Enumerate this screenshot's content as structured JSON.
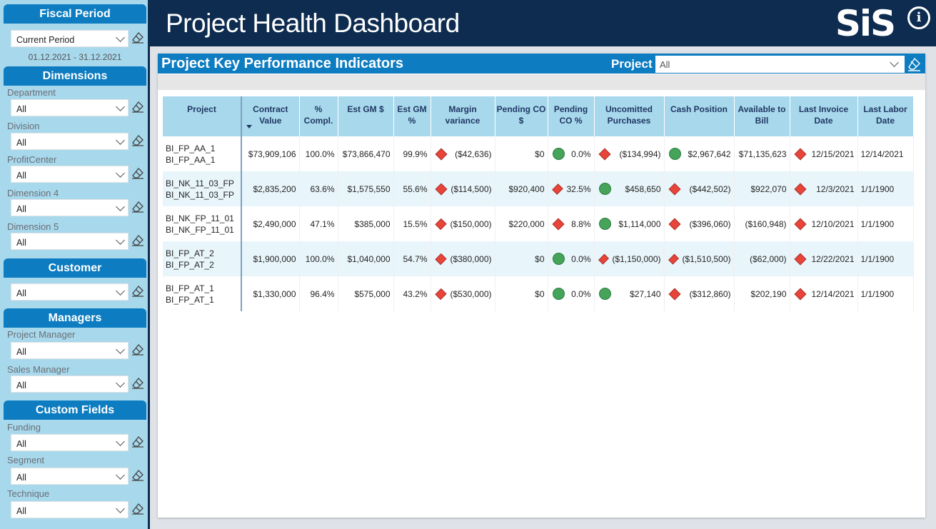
{
  "sidebar": {
    "fiscal": {
      "title": "Fiscal Period",
      "value": "Current Period",
      "date_range": "01.12.2021 - 31.12.2021"
    },
    "dimensions": {
      "title": "Dimensions",
      "filters": [
        {
          "label": "Department",
          "value": "All"
        },
        {
          "label": "Division",
          "value": "All"
        },
        {
          "label": "ProfitCenter",
          "value": "All"
        },
        {
          "label": "Dimension 4",
          "value": "All"
        },
        {
          "label": "Dimension 5",
          "value": "All"
        }
      ]
    },
    "customer": {
      "title": "Customer",
      "value": "All"
    },
    "managers": {
      "title": "Managers",
      "filters": [
        {
          "label": "Project Manager",
          "value": "All"
        },
        {
          "label": "Sales Manager",
          "value": "All"
        }
      ]
    },
    "custom": {
      "title": "Custom Fields",
      "filters": [
        {
          "label": "Funding",
          "value": "All"
        },
        {
          "label": "Segment",
          "value": "All"
        },
        {
          "label": "Technique",
          "value": "All"
        }
      ]
    }
  },
  "header": {
    "title": "Project Health Dashboard",
    "logo": "SiS",
    "info": "i"
  },
  "kpi": {
    "title": "Project Key Performance Indicators",
    "project_label": "Project",
    "project_value": "All",
    "columns": [
      "Project",
      "Contract Value",
      "% Compl.",
      "Est GM $",
      "Est GM %",
      "Margin variance",
      "Pending CO $",
      "Pending CO %",
      "Uncomitted Purchases",
      "Cash Position",
      "Available to Bill",
      "Last Invoice Date",
      "Last Labor Date"
    ],
    "rows": [
      {
        "project": [
          "BI_FP_AA_1",
          "BI_FP_AA_1"
        ],
        "contract": "$73,909,106",
        "compl": "100.0%",
        "gm": "$73,866,470",
        "gmp": "99.9%",
        "margin": "($42,636)",
        "margin_ind": "red",
        "pco": "$0",
        "pcop": "0.0%",
        "pcop_ind": "green",
        "uncomm": "($134,994)",
        "uncomm_ind": "red",
        "cash": "$2,967,642",
        "cash_ind": "green",
        "avail": "$71,135,623",
        "inv": "12/15/2021",
        "inv_ind": "red",
        "labor": "12/14/2021"
      },
      {
        "project": [
          "BI_NK_11_03_FP",
          "BI_NK_11_03_FP"
        ],
        "contract": "$2,835,200",
        "compl": "63.6%",
        "gm": "$1,575,550",
        "gmp": "55.6%",
        "margin": "($114,500)",
        "margin_ind": "red",
        "pco": "$920,400",
        "pcop": "32.5%",
        "pcop_ind": "red",
        "uncomm": "$458,650",
        "uncomm_ind": "green",
        "cash": "($442,502)",
        "cash_ind": "red",
        "avail": "$922,070",
        "inv": "12/3/2021",
        "inv_ind": "red",
        "labor": "1/1/1900"
      },
      {
        "project": [
          "BI_NK_FP_11_01",
          "BI_NK_FP_11_01"
        ],
        "contract": "$2,490,000",
        "compl": "47.1%",
        "gm": "$385,000",
        "gmp": "15.5%",
        "margin": "($150,000)",
        "margin_ind": "red",
        "pco": "$220,000",
        "pcop": "8.8%",
        "pcop_ind": "red",
        "uncomm": "$1,114,000",
        "uncomm_ind": "green",
        "cash": "($396,060)",
        "cash_ind": "red",
        "avail": "($160,948)",
        "inv": "12/10/2021",
        "inv_ind": "red",
        "labor": "1/1/1900"
      },
      {
        "project": [
          "BI_FP_AT_2",
          "BI_FP_AT_2"
        ],
        "contract": "$1,900,000",
        "compl": "100.0%",
        "gm": "$1,040,000",
        "gmp": "54.7%",
        "margin": "($380,000)",
        "margin_ind": "red",
        "pco": "$0",
        "pcop": "0.0%",
        "pcop_ind": "green",
        "uncomm": "($1,150,000)",
        "uncomm_ind": "red",
        "cash": "($1,510,500)",
        "cash_ind": "red",
        "avail": "($62,000)",
        "inv": "12/22/2021",
        "inv_ind": "red",
        "labor": "1/1/1900"
      },
      {
        "project": [
          "BI_FP_AT_1",
          "BI_FP_AT_1"
        ],
        "contract": "$1,330,000",
        "compl": "96.4%",
        "gm": "$575,000",
        "gmp": "43.2%",
        "margin": "($530,000)",
        "margin_ind": "red",
        "pco": "$0",
        "pcop": "0.0%",
        "pcop_ind": "green",
        "uncomm": "$27,140",
        "uncomm_ind": "green",
        "cash": "($312,860)",
        "cash_ind": "red",
        "avail": "$202,190",
        "inv": "12/14/2021",
        "inv_ind": "red",
        "labor": "1/1/1900"
      }
    ]
  },
  "colors": {
    "navy": "#0d2c4f",
    "accent": "#0d7cc0",
    "light_blue": "#a8d8ec",
    "kpi_red": "#e8443a",
    "kpi_green": "#46a35a"
  }
}
